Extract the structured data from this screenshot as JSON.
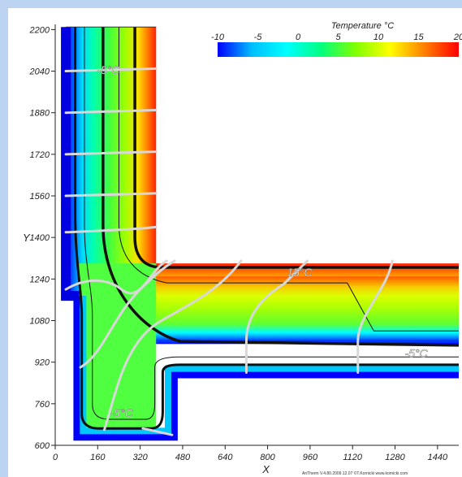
{
  "chart_data": {
    "type": "heatmap",
    "title": "",
    "xlabel": "X",
    "ylabel": "Y",
    "xlim": [
      0,
      1520
    ],
    "ylim": [
      600,
      2220
    ],
    "x_ticks": [
      0,
      160,
      320,
      480,
      640,
      800,
      960,
      1120,
      1280,
      1440
    ],
    "y_ticks": [
      600,
      760,
      920,
      1080,
      1240,
      1400,
      1560,
      1720,
      1880,
      2040,
      2200
    ],
    "colorbar": {
      "title": "Temperature °C",
      "min": -10,
      "max": 20,
      "ticks": [
        -10,
        -5,
        0,
        5,
        10,
        15,
        20
      ],
      "colors": [
        "#0000ff",
        "#00bfff",
        "#00ffff",
        "#00ff80",
        "#80ff00",
        "#ffff00",
        "#ff8000",
        "#ff0000"
      ]
    },
    "isotherm_labels": [
      {
        "text": "-5°C",
        "x": 200,
        "y": 2030
      },
      {
        "text": "15°C",
        "x": 920,
        "y": 1250
      },
      {
        "text": "-5°C",
        "x": 1360,
        "y": 940
      },
      {
        "text": "-5°C",
        "x": 250,
        "y": 710
      }
    ],
    "credit": "AnTherm V.4.80.2009.12.07 ©T.Kornicki www.kornicki.com"
  }
}
